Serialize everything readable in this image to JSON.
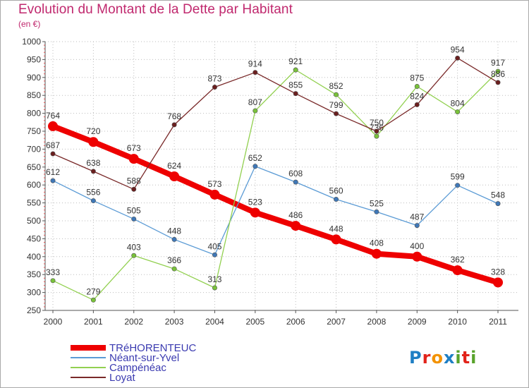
{
  "title": "Evolution du Montant de la Dette par Habitant",
  "subtitle": "(en €)",
  "logo": {
    "text": "Proxiti",
    "letters": [
      "P",
      "r",
      "o",
      "x",
      "i",
      "t",
      "i"
    ]
  },
  "colors": {
    "title": "#c0286e",
    "grid": "#bdbdbd",
    "logo": [
      "#1e7fc4",
      "#e2231a",
      "#f39200",
      "#1e7fc4",
      "#58a32b",
      "#e2231a",
      "#58a32b"
    ]
  },
  "chart_data": {
    "type": "line",
    "x": [
      "2000",
      "2001",
      "2002",
      "2003",
      "2004",
      "2005",
      "2006",
      "2007",
      "2008",
      "2009",
      "2010",
      "2011"
    ],
    "yticks": [
      250,
      300,
      350,
      400,
      450,
      500,
      550,
      600,
      650,
      700,
      750,
      800,
      850,
      900,
      950,
      1000
    ],
    "ylim": [
      250,
      1000
    ],
    "grid": true,
    "legend_position": "bottom-left",
    "series": [
      {
        "name": "TRéHORENTEUC",
        "color": "#ee0000",
        "marker": "#ee0000",
        "bold": true,
        "values": [
          764,
          720,
          673,
          624,
          573,
          523,
          486,
          448,
          408,
          400,
          362,
          328
        ]
      },
      {
        "name": "Néant-sur-Yvel",
        "color": "#5b9bd5",
        "marker": "#3f78b8",
        "bold": false,
        "values": [
          612,
          556,
          505,
          448,
          405,
          652,
          608,
          560,
          525,
          487,
          599,
          548
        ]
      },
      {
        "name": "Campénéac",
        "color": "#92d050",
        "marker": "#79c23a",
        "bold": false,
        "values": [
          333,
          279,
          403,
          366,
          313,
          807,
          921,
          852,
          736,
          875,
          804,
          917
        ]
      },
      {
        "name": "Loyat",
        "color": "#7a2a2a",
        "marker": "#6b1f1f",
        "bold": false,
        "values": [
          687,
          638,
          588,
          768,
          873,
          914,
          855,
          799,
          750,
          824,
          954,
          886
        ]
      }
    ]
  }
}
